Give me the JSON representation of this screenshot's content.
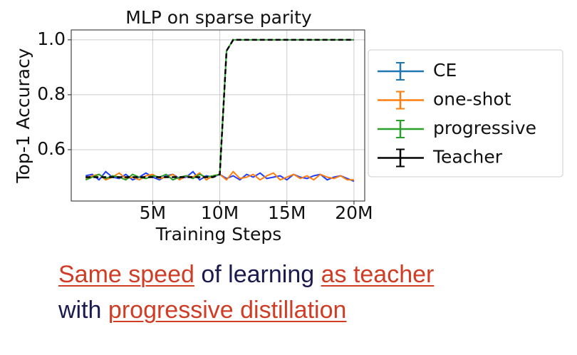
{
  "chart_data": {
    "type": "line",
    "title": "MLP on sparse parity",
    "x_label": "Training Steps",
    "y_label": "Top-1 Accuracy",
    "x": [
      0,
      500000,
      1000000,
      1500000,
      2000000,
      2500000,
      3000000,
      3500000,
      4000000,
      4500000,
      5000000,
      5500000,
      6000000,
      6500000,
      7000000,
      7500000,
      8000000,
      8500000,
      9000000,
      9500000,
      10000000,
      10500000,
      11000000,
      11500000,
      12000000,
      12500000,
      13000000,
      13500000,
      14000000,
      14500000,
      15000000,
      15500000,
      16000000,
      16500000,
      17000000,
      17500000,
      18000000,
      18500000,
      19000000,
      19500000,
      20000000
    ],
    "series": [
      {
        "name": "CE",
        "color": "#1f3fff",
        "legend_color": "#1f77b4",
        "values": [
          0.505,
          0.51,
          0.49,
          0.52,
          0.5,
          0.495,
          0.51,
          0.49,
          0.5,
          0.515,
          0.5,
          0.49,
          0.505,
          0.51,
          0.495,
          0.5,
          0.52,
          0.49,
          0.505,
          0.5,
          0.51,
          0.495,
          0.505,
          0.49,
          0.51,
          0.5,
          0.515,
          0.495,
          0.5,
          0.505,
          0.49,
          0.51,
          0.5,
          0.495,
          0.505,
          0.51,
          0.49,
          0.5,
          0.505,
          0.495,
          0.485
        ]
      },
      {
        "name": "one-shot",
        "color": "#ff7f0e",
        "legend_color": "#ff7f0e",
        "values": [
          0.495,
          0.505,
          0.51,
          0.49,
          0.5,
          0.515,
          0.495,
          0.5,
          0.49,
          0.505,
          0.51,
          0.495,
          0.5,
          0.51,
          0.49,
          0.505,
          0.5,
          0.515,
          0.49,
          0.505,
          0.51,
          0.49,
          0.52,
          0.495,
          0.5,
          0.51,
          0.49,
          0.505,
          0.515,
          0.49,
          0.5,
          0.51,
          0.495,
          0.505,
          0.49,
          0.51,
          0.5,
          0.495,
          0.505,
          0.49,
          0.49
        ]
      },
      {
        "name": "progressive",
        "color": "#2ca02c",
        "legend_color": "#2ca02c",
        "values": [
          0.49,
          0.5,
          0.51,
          0.495,
          0.505,
          0.5,
          0.49,
          0.51,
          0.5,
          0.495,
          0.505,
          0.5,
          0.51,
          0.49,
          0.5,
          0.505,
          0.495,
          0.51,
          0.5,
          0.505,
          0.51,
          0.96,
          1,
          1,
          1,
          1,
          1,
          1,
          1,
          1,
          1,
          1,
          1,
          1,
          1,
          1,
          1,
          1,
          1,
          1,
          1
        ]
      },
      {
        "name": "Teacher",
        "color": "#000000",
        "legend_color": "#000000",
        "dashed": true,
        "values": [
          0.5,
          0.5,
          0.5,
          0.5,
          0.5,
          0.5,
          0.5,
          0.5,
          0.5,
          0.5,
          0.5,
          0.5,
          0.5,
          0.5,
          0.5,
          0.5,
          0.5,
          0.5,
          0.5,
          0.5,
          0.51,
          0.96,
          1,
          1,
          1,
          1,
          1,
          1,
          1,
          1,
          1,
          1,
          1,
          1,
          1,
          1,
          1,
          1,
          1,
          1,
          1
        ]
      }
    ],
    "xlim": [
      -1070000,
      20800000
    ],
    "ylim": [
      0.413,
      1.036
    ],
    "xticks": [
      {
        "value": 5000000,
        "label": "5M"
      },
      {
        "value": 10000000,
        "label": "10M"
      },
      {
        "value": 15000000,
        "label": "15M"
      },
      {
        "value": 20000000,
        "label": "20M"
      }
    ],
    "yticks": [
      0.6,
      0.8,
      {
        "value": 1,
        "label": "1.0"
      }
    ],
    "grid": true,
    "legend": "outside right"
  },
  "caption": {
    "line1": [
      "Same speed",
      "of learning",
      "as teacher"
    ],
    "line2": [
      "with",
      "progressive distillation"
    ]
  }
}
